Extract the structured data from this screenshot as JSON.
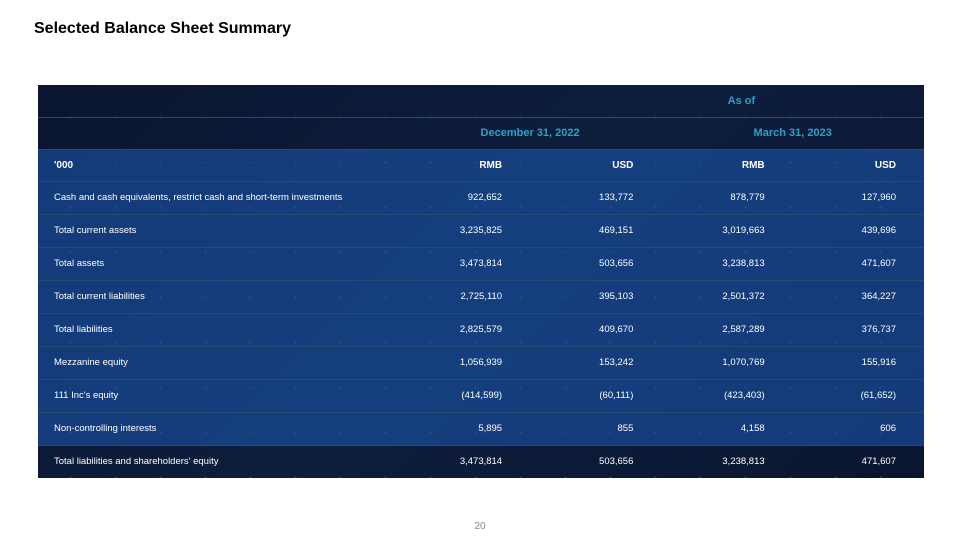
{
  "title": "Selected Balance Sheet Summary",
  "pageNumber": "20",
  "header": {
    "asOf": "As of",
    "date1": "December 31, 2022",
    "date2": "March 31, 2023",
    "unitLabel": "'000",
    "rmb": "RMB",
    "usd": "USD"
  },
  "rows": [
    {
      "label": "Cash and cash equivalents, restrict cash and short-term investments",
      "v1": "922,652",
      "v2": "133,772",
      "v3": "878,779",
      "v4": "127,960"
    },
    {
      "label": "Total current assets",
      "v1": "3,235,825",
      "v2": "469,151",
      "v3": "3,019,663",
      "v4": "439,696"
    },
    {
      "label": "Total assets",
      "v1": "3,473,814",
      "v2": "503,656",
      "v3": "3,238,813",
      "v4": "471,607"
    },
    {
      "label": "Total current liabilities",
      "v1": "2,725,110",
      "v2": "395,103",
      "v3": "2,501,372",
      "v4": "364,227"
    },
    {
      "label": "Total liabilities",
      "v1": "2,825,579",
      "v2": "409,670",
      "v3": "2,587,289",
      "v4": "376,737"
    },
    {
      "label": "Mezzanine equity",
      "v1": "1,056,939",
      "v2": "153,242",
      "v3": "1,070,769",
      "v4": "155,916"
    },
    {
      "label": "111 Inc's equity",
      "v1": "(414,599)",
      "v2": "(60,111)",
      "v3": "(423,403)",
      "v4": "(61,652)"
    },
    {
      "label": "Non-controlling interests",
      "v1": "5,895",
      "v2": "855",
      "v3": "4,158",
      "v4": "606"
    },
    {
      "label": "Total liabilities and shareholders' equity",
      "v1": "3,473,814",
      "v2": "503,656",
      "v3": "3,238,813",
      "v4": "471,607"
    }
  ]
}
